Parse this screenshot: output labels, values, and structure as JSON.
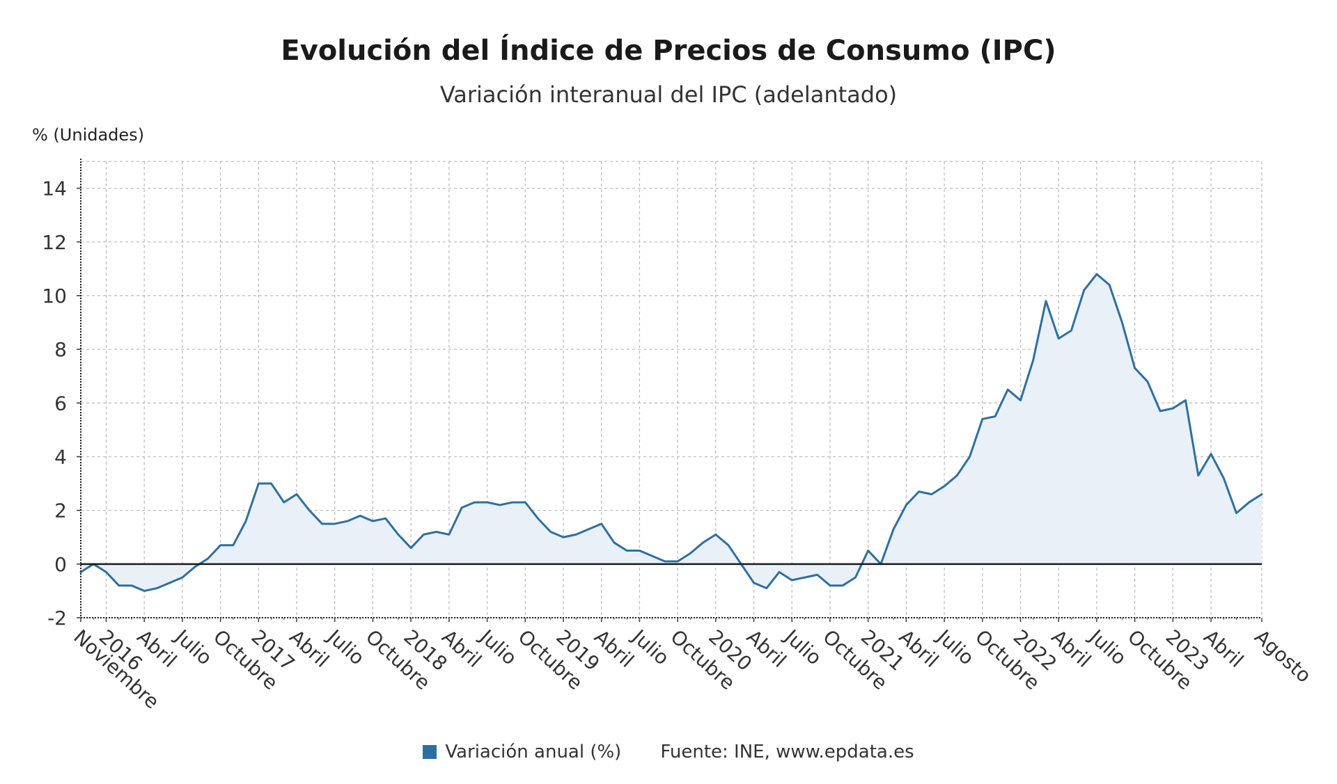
{
  "header": {
    "title": "Evolución del Índice de Precios de Consumo (IPC)",
    "subtitle": "Variación interanual del IPC (adelantado)"
  },
  "colors": {
    "line": "#2e6fa1",
    "fill": "#e9f0f8",
    "grid": "#bdbdbd",
    "zero_line": "#1a1a1a",
    "legend_swatch": "#2e6fa1"
  },
  "legend": {
    "series_label": "Variación anual (%)",
    "source": "Fuente: INE, www.epdata.es"
  },
  "chart_data": {
    "type": "area",
    "ylabel": "% (Unidades)",
    "xlabel": "",
    "ylim": [
      -2,
      15
    ],
    "yticks": [
      -2,
      0,
      2,
      4,
      6,
      8,
      10,
      12,
      14
    ],
    "grid": true,
    "legend_position": "bottom",
    "x": [
      "2016-11",
      "2016-12",
      "2017-01",
      "2017-02",
      "2017-03",
      "2017-04",
      "2017-05",
      "2017-06",
      "2017-07",
      "2017-08",
      "2017-09",
      "2017-10",
      "2017-11",
      "2017-12",
      "2018-01",
      "2018-02",
      "2018-03",
      "2018-04",
      "2018-05",
      "2018-06",
      "2018-07",
      "2018-08",
      "2018-09",
      "2018-10",
      "2018-11",
      "2018-12",
      "2019-01",
      "2019-02",
      "2019-03",
      "2019-04",
      "2019-05",
      "2019-06",
      "2019-07",
      "2019-08",
      "2019-09",
      "2019-10",
      "2019-11",
      "2019-12",
      "2020-01",
      "2020-02",
      "2020-03",
      "2020-04",
      "2020-05",
      "2020-06",
      "2020-07",
      "2020-08",
      "2020-09",
      "2020-10",
      "2020-11",
      "2020-12",
      "2021-01",
      "2021-02",
      "2021-03",
      "2021-04",
      "2021-05",
      "2021-06",
      "2021-07",
      "2021-08",
      "2021-09",
      "2021-10",
      "2021-11",
      "2021-12",
      "2022-01",
      "2022-02",
      "2022-03",
      "2022-04",
      "2022-05",
      "2022-06",
      "2022-07",
      "2022-08",
      "2022-09",
      "2022-10",
      "2022-11",
      "2022-12",
      "2023-01",
      "2023-02",
      "2023-03",
      "2023-04",
      "2023-05",
      "2023-06",
      "2023-07",
      "2023-08",
      "2023-09",
      "2023-10",
      "2023-11",
      "2023-12",
      "2024-01",
      "2024-02",
      "2024-03",
      "2024-04",
      "2024-05",
      "2024-06",
      "2024-07",
      "2024-08"
    ],
    "x_tick_labels": [
      {
        "index": 0,
        "label": "Noviembre"
      },
      {
        "index": 2,
        "label": "2016"
      },
      {
        "index": 5,
        "label": "Abril"
      },
      {
        "index": 8,
        "label": "Julio"
      },
      {
        "index": 11,
        "label": "Octubre"
      },
      {
        "index": 14,
        "label": "2017"
      },
      {
        "index": 17,
        "label": "Abril"
      },
      {
        "index": 20,
        "label": "Julio"
      },
      {
        "index": 23,
        "label": "Octubre"
      },
      {
        "index": 26,
        "label": "2018"
      },
      {
        "index": 29,
        "label": "Abril"
      },
      {
        "index": 32,
        "label": "Julio"
      },
      {
        "index": 35,
        "label": "Octubre"
      },
      {
        "index": 38,
        "label": "2019"
      },
      {
        "index": 41,
        "label": "Abril"
      },
      {
        "index": 44,
        "label": "Julio"
      },
      {
        "index": 47,
        "label": "Octubre"
      },
      {
        "index": 50,
        "label": "2020"
      },
      {
        "index": 53,
        "label": "Abril"
      },
      {
        "index": 56,
        "label": "Julio"
      },
      {
        "index": 59,
        "label": "Octubre"
      },
      {
        "index": 62,
        "label": "2021"
      },
      {
        "index": 65,
        "label": "Abril"
      },
      {
        "index": 68,
        "label": "Julio"
      },
      {
        "index": 71,
        "label": "Octubre"
      },
      {
        "index": 74,
        "label": "2022"
      },
      {
        "index": 77,
        "label": "Abril"
      },
      {
        "index": 80,
        "label": "Julio"
      },
      {
        "index": 83,
        "label": "Octubre"
      },
      {
        "index": 86,
        "label": "2023"
      },
      {
        "index": 89,
        "label": "Abril"
      },
      {
        "index": 93,
        "label": "Agosto"
      }
    ],
    "series": [
      {
        "name": "Variación anual (%)",
        "values": [
          -0.3,
          0.0,
          -0.3,
          -0.8,
          -0.8,
          -1.0,
          -0.9,
          -0.7,
          -0.5,
          -0.1,
          0.2,
          0.7,
          0.7,
          1.6,
          3.0,
          3.0,
          2.3,
          2.6,
          2.0,
          1.5,
          1.5,
          1.6,
          1.8,
          1.6,
          1.7,
          1.1,
          0.6,
          1.1,
          1.2,
          1.1,
          2.1,
          2.3,
          2.3,
          2.2,
          2.3,
          2.3,
          1.7,
          1.2,
          1.0,
          1.1,
          1.3,
          1.5,
          0.8,
          0.5,
          0.5,
          0.3,
          0.1,
          0.1,
          0.4,
          0.8,
          1.1,
          0.7,
          0.0,
          -0.7,
          -0.9,
          -0.3,
          -0.6,
          -0.5,
          -0.4,
          -0.8,
          -0.8,
          -0.5,
          0.5,
          0.0,
          1.3,
          2.2,
          2.7,
          2.6,
          2.9,
          3.3,
          4.0,
          5.4,
          5.5,
          6.5,
          6.1,
          7.6,
          9.8,
          8.4,
          8.7,
          10.2,
          10.8,
          10.4,
          9.0,
          7.3,
          6.8,
          5.7,
          5.8,
          6.1,
          3.3,
          4.1,
          3.2,
          1.9,
          2.3,
          2.6
        ]
      }
    ]
  }
}
